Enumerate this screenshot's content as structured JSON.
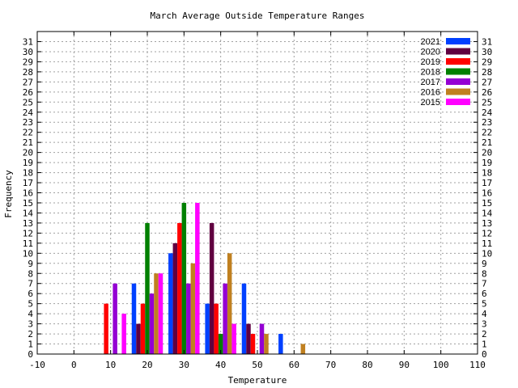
{
  "chart_data": {
    "type": "bar",
    "title": "March Average Outside Temperature Ranges",
    "xlabel": "Temperature",
    "ylabel": "Frequency",
    "xlim": [
      -10,
      110
    ],
    "ylim": [
      0,
      32
    ],
    "x_ticks": [
      -10,
      0,
      10,
      20,
      30,
      40,
      50,
      60,
      70,
      80,
      90,
      100,
      110
    ],
    "y_ticks": [
      0,
      1,
      2,
      3,
      4,
      5,
      6,
      7,
      8,
      9,
      10,
      11,
      12,
      13,
      14,
      15,
      16,
      17,
      18,
      19,
      20,
      21,
      22,
      23,
      24,
      25,
      26,
      27,
      28,
      29,
      30,
      31
    ],
    "y_ticks_mirrored_right": true,
    "grid": true,
    "legend_position": "top-right",
    "bin_centers": [
      10,
      20,
      30,
      40,
      50,
      60
    ],
    "series": [
      {
        "name": "2021",
        "color": "#0040ff",
        "values": [
          0,
          7,
          10,
          5,
          7,
          2
        ]
      },
      {
        "name": "2020",
        "color": "#600040",
        "values": [
          0,
          3,
          11,
          13,
          3,
          0
        ]
      },
      {
        "name": "2019",
        "color": "#ff0000",
        "values": [
          5,
          5,
          13,
          5,
          2,
          0
        ]
      },
      {
        "name": "2018",
        "color": "#008000",
        "values": [
          0,
          13,
          15,
          2,
          0,
          0
        ]
      },
      {
        "name": "2017",
        "color": "#9400d3",
        "values": [
          7,
          6,
          7,
          7,
          3,
          0
        ]
      },
      {
        "name": "2016",
        "color": "#c08020",
        "values": [
          0,
          8,
          9,
          10,
          2,
          1
        ]
      },
      {
        "name": "2015",
        "color": "#ff00ff",
        "values": [
          4,
          8,
          15,
          3,
          0,
          0
        ]
      }
    ]
  }
}
